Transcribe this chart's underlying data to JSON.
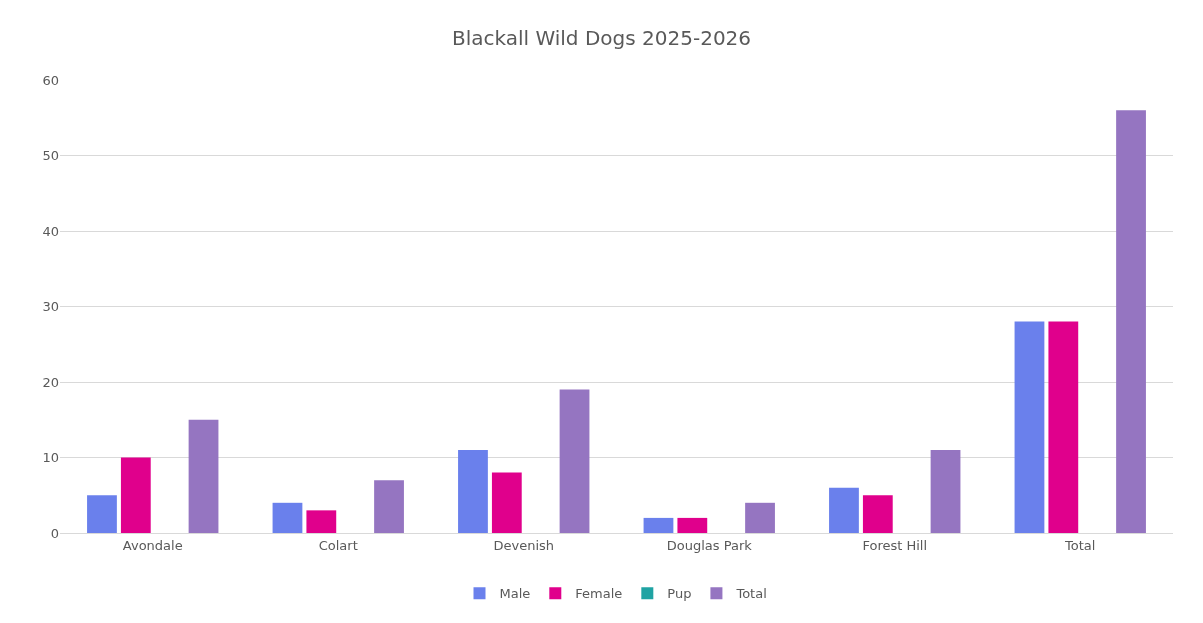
{
  "chart_data": {
    "type": "bar",
    "title": "Blackall Wild Dogs 2025-2026",
    "categories": [
      "Avondale",
      "Colart",
      "Devenish",
      "Douglas Park",
      "Forest Hill",
      "Total"
    ],
    "series": [
      {
        "name": "Male",
        "color": "#6a80ec",
        "values": [
          5,
          4,
          11,
          2,
          6,
          28
        ]
      },
      {
        "name": "Female",
        "color": "#e0008c",
        "values": [
          10,
          3,
          8,
          2,
          5,
          28
        ]
      },
      {
        "name": "Pup",
        "color": "#1fa3a3",
        "values": [
          0,
          0,
          0,
          0,
          0,
          0
        ]
      },
      {
        "name": "Total",
        "color": "#9575c1",
        "values": [
          15,
          7,
          19,
          4,
          11,
          56
        ]
      }
    ],
    "ylim": [
      0,
      60
    ],
    "yticks": [
      0,
      10,
      20,
      30,
      40,
      50,
      60
    ],
    "grid": "y",
    "legend": "bottom"
  }
}
